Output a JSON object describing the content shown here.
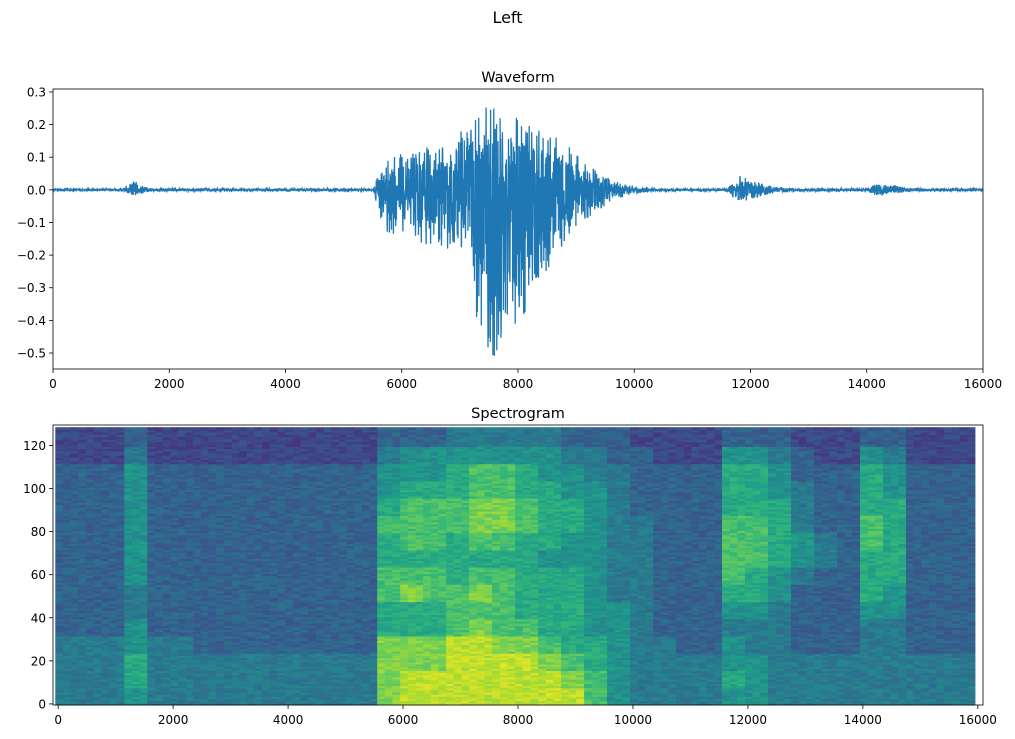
{
  "figure": {
    "suptitle": "Left"
  },
  "chart_data": [
    {
      "type": "line",
      "title": "Waveform",
      "xlim": [
        0,
        16000
      ],
      "ylim": [
        -0.549,
        0.309
      ],
      "xticks": [
        0,
        2000,
        4000,
        6000,
        8000,
        10000,
        12000,
        14000,
        16000
      ],
      "yticks": [
        0.3,
        0.2,
        0.1,
        0.0,
        -0.1,
        -0.2,
        -0.3,
        -0.4,
        -0.5
      ],
      "ytick_labels": [
        "0.3",
        "0.2",
        "0.1",
        "0.0",
        "−0.1",
        "−0.2",
        "−0.3",
        "−0.4",
        "−0.5"
      ],
      "color": "#1f77b4",
      "envelope": {
        "x": [
          0,
          1200,
          1400,
          1500,
          1700,
          5500,
          5600,
          5700,
          6000,
          6400,
          6800,
          7100,
          7200,
          7400,
          7600,
          8000,
          8400,
          8800,
          9200,
          9600,
          10000,
          10400,
          11600,
          11800,
          12000,
          12400,
          12800,
          14000,
          14200,
          14400,
          14800,
          16000
        ],
        "max": [
          0.003,
          0.003,
          0.03,
          0.015,
          0.004,
          0.004,
          0.05,
          0.1,
          0.11,
          0.13,
          0.13,
          0.2,
          0.22,
          0.25,
          0.27,
          0.22,
          0.19,
          0.15,
          0.08,
          0.03,
          0.012,
          0.004,
          0.004,
          0.045,
          0.03,
          0.01,
          0.004,
          0.005,
          0.02,
          0.015,
          0.005,
          0.003
        ],
        "min": [
          -0.003,
          -0.003,
          -0.02,
          -0.012,
          -0.004,
          -0.004,
          -0.06,
          -0.13,
          -0.15,
          -0.17,
          -0.19,
          -0.23,
          -0.31,
          -0.5,
          -0.51,
          -0.42,
          -0.28,
          -0.16,
          -0.09,
          -0.035,
          -0.012,
          -0.004,
          -0.004,
          -0.05,
          -0.03,
          -0.01,
          -0.004,
          -0.005,
          -0.022,
          -0.015,
          -0.005,
          -0.003
        ]
      }
    },
    {
      "type": "heatmap",
      "title": "Spectrogram",
      "xlim": [
        -90,
        16090
      ],
      "ylim": [
        -0.5,
        129.5
      ],
      "xticks": [
        0,
        2000,
        4000,
        6000,
        8000,
        10000,
        12000,
        14000,
        16000
      ],
      "yticks": [
        0,
        20,
        40,
        60,
        80,
        100,
        120
      ],
      "colormap": "viridis",
      "time_bin_width": 400,
      "freq_bin_height": 8,
      "intensity_scale": [
        0,
        9
      ],
      "intensity_rows_low_to_high": [
        [
          4,
          4,
          4,
          5,
          4,
          4,
          4,
          4,
          4,
          4,
          4,
          4,
          4,
          4,
          8,
          9,
          9,
          9,
          9,
          9,
          9,
          9,
          9,
          7,
          5,
          4,
          4,
          4,
          4,
          5,
          5,
          4,
          4,
          4,
          4,
          4,
          4,
          4,
          4,
          4
        ],
        [
          4,
          4,
          4,
          6,
          4,
          4,
          4,
          4,
          4,
          4,
          4,
          4,
          4,
          4,
          8,
          9,
          9,
          9,
          9,
          9,
          9,
          9,
          8,
          7,
          5,
          4,
          4,
          4,
          4,
          6,
          5,
          4,
          4,
          4,
          4,
          4,
          4,
          4,
          4,
          4
        ],
        [
          4,
          4,
          4,
          6,
          4,
          4,
          4,
          4,
          4,
          4,
          4,
          4,
          4,
          4,
          8,
          8,
          8,
          9,
          9,
          9,
          9,
          8,
          7,
          6,
          5,
          4,
          4,
          4,
          4,
          5,
          5,
          4,
          4,
          4,
          4,
          4,
          4,
          4,
          4,
          4
        ],
        [
          4,
          4,
          4,
          5,
          4,
          4,
          3,
          3,
          3,
          3,
          3,
          3,
          3,
          3,
          8,
          8,
          8,
          9,
          9,
          8,
          8,
          7,
          6,
          6,
          5,
          4,
          4,
          3,
          3,
          5,
          4,
          4,
          3,
          3,
          3,
          4,
          4,
          3,
          3,
          3
        ],
        [
          3,
          3,
          3,
          5,
          3,
          3,
          3,
          3,
          3,
          3,
          3,
          3,
          3,
          3,
          6,
          6,
          6,
          7,
          8,
          7,
          7,
          6,
          6,
          5,
          5,
          4,
          3,
          3,
          3,
          4,
          4,
          4,
          3,
          3,
          3,
          4,
          4,
          3,
          3,
          3
        ],
        [
          3,
          3,
          3,
          4,
          3,
          3,
          3,
          3,
          3,
          3,
          3,
          3,
          3,
          3,
          6,
          6,
          6,
          7,
          7,
          7,
          6,
          6,
          6,
          5,
          5,
          4,
          3,
          3,
          3,
          5,
          5,
          4,
          3,
          3,
          3,
          5,
          5,
          3,
          3,
          3
        ],
        [
          3,
          3,
          3,
          4,
          3,
          3,
          3,
          3,
          3,
          3,
          3,
          3,
          3,
          3,
          7,
          8,
          7,
          7,
          8,
          7,
          6,
          6,
          6,
          5,
          4,
          4,
          3,
          3,
          3,
          6,
          6,
          5,
          3,
          3,
          3,
          6,
          5,
          3,
          3,
          3
        ],
        [
          3,
          3,
          3,
          5,
          3,
          3,
          3,
          3,
          3,
          3,
          3,
          3,
          3,
          3,
          7,
          7,
          7,
          6,
          7,
          7,
          6,
          6,
          6,
          5,
          4,
          4,
          3,
          3,
          3,
          7,
          6,
          5,
          4,
          3,
          3,
          6,
          6,
          3,
          3,
          3
        ],
        [
          3,
          3,
          3,
          5,
          3,
          3,
          3,
          3,
          3,
          3,
          3,
          3,
          3,
          3,
          6,
          6,
          6,
          6,
          6,
          6,
          6,
          5,
          5,
          5,
          4,
          4,
          3,
          3,
          3,
          7,
          7,
          6,
          5,
          4,
          3,
          6,
          6,
          3,
          3,
          3
        ],
        [
          3,
          3,
          3,
          5,
          3,
          3,
          3,
          3,
          3,
          3,
          3,
          3,
          3,
          3,
          6,
          7,
          7,
          6,
          7,
          7,
          6,
          6,
          5,
          5,
          4,
          4,
          3,
          3,
          3,
          7,
          7,
          6,
          5,
          4,
          3,
          7,
          6,
          3,
          3,
          3
        ],
        [
          3,
          3,
          3,
          5,
          3,
          3,
          3,
          3,
          3,
          3,
          3,
          3,
          3,
          3,
          7,
          7,
          7,
          7,
          8,
          8,
          7,
          6,
          6,
          5,
          4,
          4,
          3,
          3,
          3,
          7,
          7,
          6,
          4,
          3,
          3,
          7,
          6,
          3,
          3,
          3
        ],
        [
          3,
          3,
          3,
          5,
          3,
          3,
          3,
          3,
          3,
          3,
          3,
          3,
          3,
          3,
          6,
          7,
          7,
          7,
          8,
          8,
          7,
          6,
          6,
          5,
          4,
          3,
          3,
          3,
          3,
          6,
          6,
          6,
          4,
          3,
          3,
          6,
          6,
          3,
          3,
          3
        ],
        [
          3,
          3,
          3,
          5,
          3,
          3,
          3,
          3,
          3,
          3,
          3,
          3,
          3,
          3,
          5,
          6,
          6,
          6,
          7,
          7,
          6,
          6,
          5,
          5,
          4,
          3,
          3,
          3,
          3,
          6,
          6,
          5,
          4,
          3,
          3,
          6,
          5,
          3,
          3,
          3
        ],
        [
          3,
          3,
          3,
          5,
          3,
          3,
          3,
          3,
          3,
          3,
          3,
          3,
          3,
          3,
          5,
          5,
          5,
          6,
          7,
          7,
          6,
          5,
          5,
          4,
          4,
          3,
          3,
          3,
          3,
          6,
          6,
          5,
          3,
          3,
          3,
          6,
          5,
          3,
          3,
          3
        ],
        [
          2,
          2,
          2,
          4,
          2,
          2,
          2,
          2,
          2,
          2,
          2,
          2,
          2,
          2,
          4,
          5,
          5,
          5,
          5,
          5,
          5,
          5,
          4,
          4,
          3,
          3,
          2,
          2,
          2,
          5,
          5,
          4,
          3,
          2,
          2,
          5,
          4,
          2,
          2,
          2
        ],
        [
          2,
          2,
          2,
          3,
          2,
          2,
          2,
          2,
          2,
          2,
          2,
          2,
          2,
          2,
          3,
          3,
          3,
          4,
          4,
          4,
          4,
          4,
          3,
          3,
          3,
          2,
          2,
          2,
          2,
          3,
          3,
          3,
          2,
          2,
          2,
          3,
          3,
          2,
          2,
          2
        ]
      ]
    }
  ]
}
